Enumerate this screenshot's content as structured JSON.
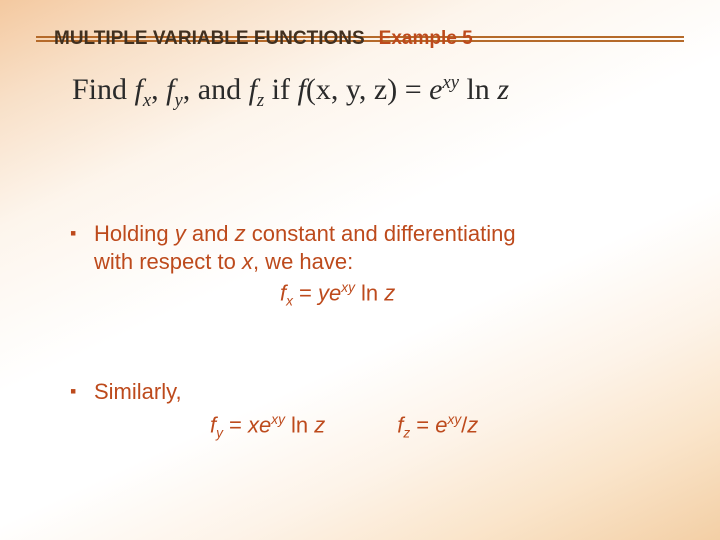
{
  "header": {
    "section_title": "MULTIPLE VARIABLE FUNCTIONS",
    "example_label": "Example 5"
  },
  "main_statement": {
    "prefix": "Find ",
    "fx_var": "f",
    "fx_sub": "x",
    "sep1": ", ",
    "fy_var": "f",
    "fy_sub": "y",
    "sep2": ", and ",
    "fz_var": "f",
    "fz_sub": "z",
    "mid": " if ",
    "func": "f",
    "args": "(x, y, z)",
    "eq": " = ",
    "e": "e",
    "exp": "xy",
    "ln": " ln ",
    "zvar": "z"
  },
  "bullet1": {
    "line1": "Holding ",
    "var_y": "y",
    "mid1": " and ",
    "var_z": "z",
    "mid2": " constant and differentiating",
    "line2a": "with respect to ",
    "var_x": "x",
    "line2b": ", we have:"
  },
  "eq_fx": {
    "lhs_var": "f",
    "lhs_sub": "x",
    "eq": " = ",
    "coef": "ye",
    "exp": "xy",
    "ln": " ln ",
    "zvar": "z"
  },
  "bullet2": {
    "text": "Similarly,"
  },
  "eq_fy": {
    "lhs_var": "f",
    "lhs_sub": "y",
    "eq": " = ",
    "coef": "xe",
    "exp": "xy",
    "ln": " ln ",
    "zvar": "z"
  },
  "eq_fz": {
    "lhs_var": "f",
    "lhs_sub": "z",
    "eq": " = ",
    "coef": "e",
    "exp": "xy",
    "slash": "/",
    "zvar": "z"
  },
  "colors": {
    "accent": "#bd4a1c",
    "rule": "#b56a2a",
    "text_dark": "#2a2a2a"
  }
}
